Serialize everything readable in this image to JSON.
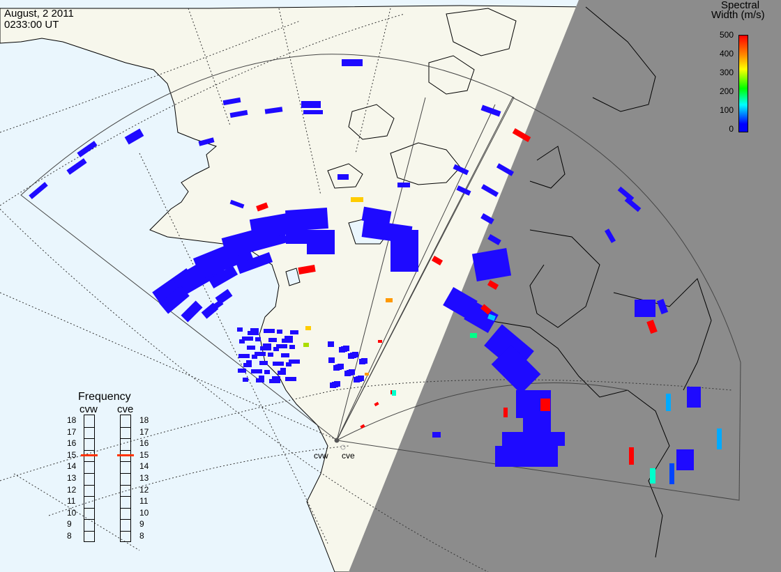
{
  "header": {
    "date": "August, 2 2011",
    "time": "0233:00 UT"
  },
  "colorbar": {
    "title_line1": "Spectral",
    "title_line2": "Width (m/s)",
    "ticks": [
      "500",
      "400",
      "300",
      "200",
      "100",
      "0"
    ],
    "colors": [
      "#ff0000",
      "#ffff00",
      "#00ff00",
      "#00ffff",
      "#0000ff"
    ]
  },
  "frequency": {
    "title": "Frequency",
    "radars": [
      {
        "label": "cvw",
        "current_mhz": 15
      },
      {
        "label": "cve",
        "current_mhz": 15
      }
    ],
    "scale": [
      "18",
      "17",
      "16",
      "15",
      "14",
      "13",
      "12",
      "11",
      "10",
      "9",
      "8"
    ]
  },
  "sites": {
    "left_label": "cvw",
    "right_label": "cve"
  },
  "colors": {
    "ocean": "#eaf6fd",
    "land": "#f7f7ec",
    "night": "#8c8c8c",
    "scatter_blue": "#1e0aff",
    "marker_red": "#ff3300"
  }
}
